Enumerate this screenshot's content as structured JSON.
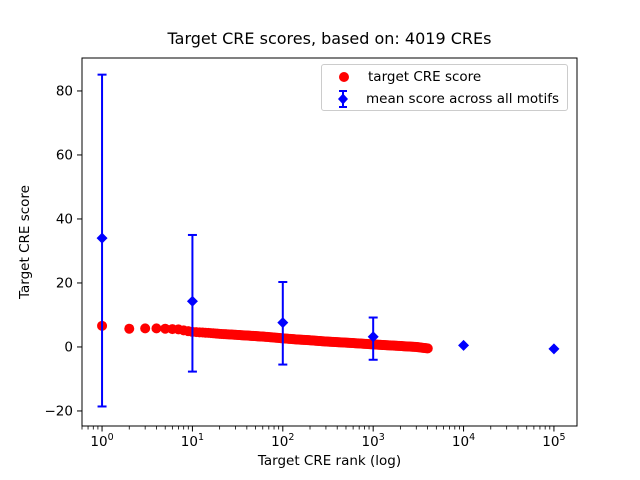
{
  "title": "Target CRE scores, based on: 4019 CREs",
  "axes": {
    "xlabel": "Target CRE rank (log)",
    "ylabel": "Target CRE score",
    "x_scale": "log",
    "x_tick_exponents": [
      0,
      1,
      2,
      3,
      4,
      5
    ],
    "y_ticks": [
      -20,
      0,
      20,
      40,
      60,
      80
    ],
    "xlim": [
      0.6,
      180000
    ],
    "ylim": [
      -24.7,
      90.3
    ],
    "grid": false
  },
  "legend": {
    "position": "upper right",
    "items": [
      {
        "label": "target CRE score",
        "marker": "circle",
        "color": "#ff0000"
      },
      {
        "label": "mean score across all motifs",
        "marker": "diamond-errorbar",
        "color": "#0000ff"
      }
    ]
  },
  "chart_data": {
    "type": "scatter",
    "n_points": 4019,
    "series": [
      {
        "name": "target CRE score",
        "marker": "circle",
        "color": "#ff0000",
        "rank_range": [
          1,
          4019
        ],
        "points_sampled": [
          [
            1,
            6.6
          ],
          [
            2,
            5.7
          ],
          [
            3,
            5.8
          ],
          [
            4,
            5.8
          ],
          [
            5,
            5.7
          ],
          [
            7,
            5.5
          ],
          [
            10,
            4.7
          ],
          [
            15,
            4.4
          ],
          [
            20,
            4.1
          ],
          [
            30,
            3.8
          ],
          [
            50,
            3.4
          ],
          [
            70,
            3.1
          ],
          [
            100,
            2.7
          ],
          [
            150,
            2.3
          ],
          [
            200,
            2.1
          ],
          [
            300,
            1.7
          ],
          [
            500,
            1.35
          ],
          [
            700,
            1.1
          ],
          [
            1000,
            0.8
          ],
          [
            1500,
            0.5
          ],
          [
            2000,
            0.3
          ],
          [
            3000,
            0.0
          ],
          [
            4019,
            -0.45
          ]
        ]
      },
      {
        "name": "mean score across all motifs",
        "marker": "diamond",
        "color": "#0000ff",
        "points": [
          {
            "x": 1,
            "mean": 34.0,
            "err_lo": -18.6,
            "err_hi": 85.1
          },
          {
            "x": 10,
            "mean": 14.3,
            "err_lo": -7.7,
            "err_hi": 35.0
          },
          {
            "x": 100,
            "mean": 7.6,
            "err_lo": -5.5,
            "err_hi": 20.3
          },
          {
            "x": 1000,
            "mean": 3.2,
            "err_lo": -4.0,
            "err_hi": 9.2
          },
          {
            "x": 10000,
            "mean": 0.5,
            "err_lo": null,
            "err_hi": null
          },
          {
            "x": 100000,
            "mean": -0.6,
            "err_lo": null,
            "err_hi": null
          }
        ]
      }
    ]
  }
}
